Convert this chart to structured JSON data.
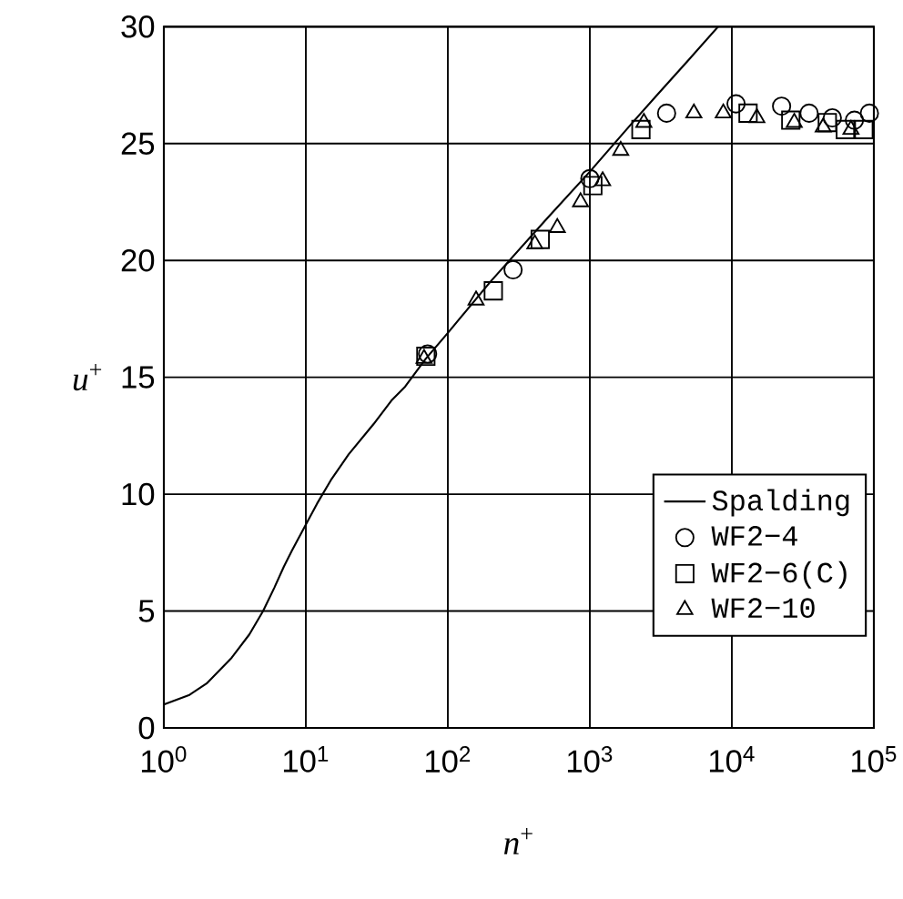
{
  "chart_data": {
    "type": "line",
    "xlabel": "*n*$^{+}$",
    "ylabel": "*u*$^{+}$",
    "log": "x",
    "xlim": [
      1,
      100000
    ],
    "ylim": [
      0,
      30
    ],
    "xticks": [
      {
        "value": 1,
        "label": "10$^{0}$"
      },
      {
        "value": 10,
        "label": "10$^{1}$"
      },
      {
        "value": 100,
        "label": "10$^{2}$"
      },
      {
        "value": 1000,
        "label": "10$^{3}$"
      },
      {
        "value": 10000,
        "label": "10$^{4}$"
      },
      {
        "value": 100000,
        "label": "10$^{5}$"
      }
    ],
    "yticks": [
      0,
      5,
      10,
      15,
      20,
      25,
      30
    ],
    "grid": true,
    "legend": "bottom right",
    "series": [
      {
        "name": "Spalding",
        "color": "#000000",
        "marker": "none",
        "line_style": "solid",
        "x": [
          1,
          1.5,
          2,
          3,
          4,
          5,
          6,
          7,
          8,
          10,
          12,
          15,
          20,
          30,
          40,
          50,
          70,
          100,
          200,
          500,
          1000,
          2000,
          3000,
          5000,
          8000
        ],
        "values": [
          1,
          1.4,
          1.9,
          3,
          4,
          5,
          6,
          6.9,
          7.6,
          8.7,
          9.6,
          10.6,
          11.7,
          13,
          14,
          14.6,
          15.8,
          16.9,
          19.1,
          21.8,
          23.8,
          25.9,
          27.1,
          28.6,
          30
        ]
      },
      {
        "name": "WF2−4",
        "type": "scatter",
        "color": "#000000",
        "marker": "circle",
        "x": [
          72,
          288,
          1000,
          3470,
          10700,
          22400,
          35000,
          51000,
          73000,
          93000
        ],
        "values": [
          16.0,
          19.6,
          23.5,
          26.3,
          26.7,
          26.6,
          26.3,
          26.1,
          26.0,
          26.3
        ]
      },
      {
        "name": "WF2−6(C)",
        "type": "scatter",
        "color": "#000000",
        "marker": "square",
        "x": [
          70,
          209,
          447,
          1050,
          2290,
          13000,
          26000,
          47000,
          63000,
          85000
        ],
        "values": [
          15.9,
          18.7,
          20.9,
          23.2,
          25.6,
          26.3,
          26.0,
          25.9,
          25.6,
          25.6
        ]
      },
      {
        "name": "WF2−10",
        "type": "scatter",
        "color": "#000000",
        "marker": "triangle",
        "x": [
          68,
          158,
          410,
          590,
          860,
          1230,
          1650,
          2400,
          5400,
          8700,
          15000,
          27500,
          44000,
          69000
        ],
        "values": [
          15.8,
          18.3,
          20.7,
          21.4,
          22.5,
          23.4,
          24.7,
          25.9,
          26.3,
          26.3,
          26.1,
          25.9,
          25.7,
          25.6
        ]
      }
    ]
  }
}
